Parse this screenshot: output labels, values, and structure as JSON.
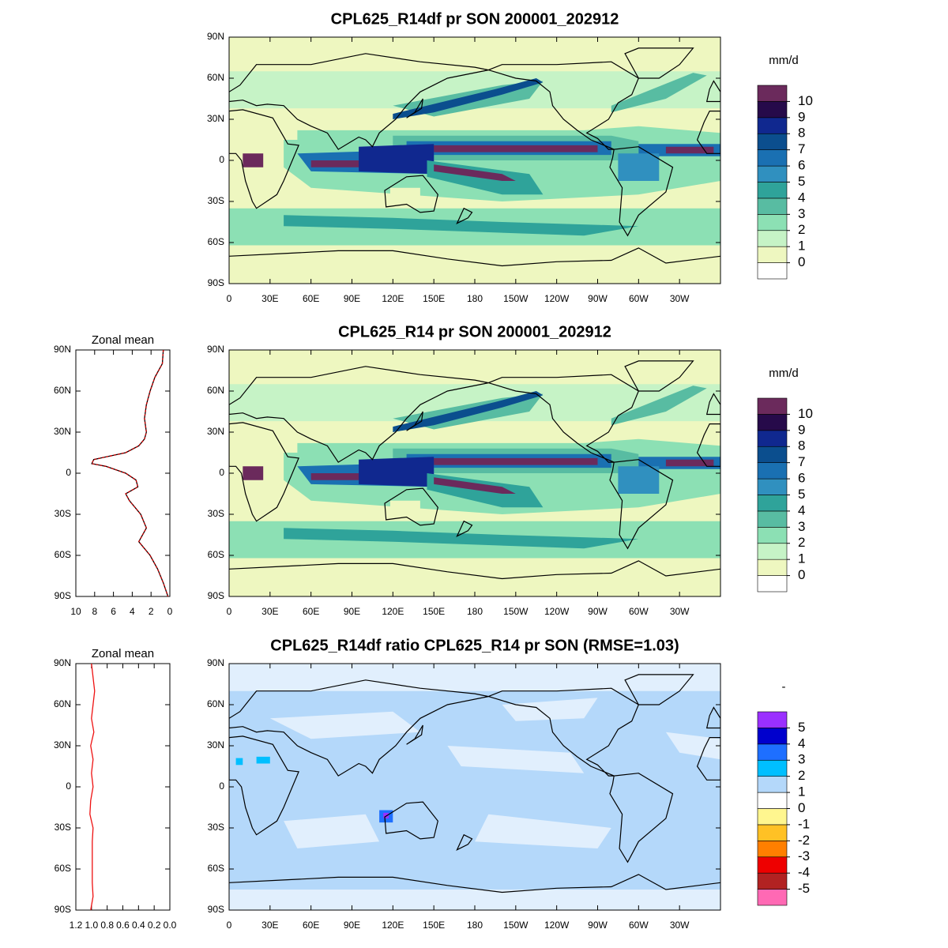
{
  "chart_data": [
    {
      "type": "map",
      "title": "CPL625_R14df pr SON 200001_202912",
      "xlim": [
        0,
        360
      ],
      "ylim": [
        -90,
        90
      ],
      "xticks": [
        0,
        {
          "value": 30,
          "label": "30E"
        },
        {
          "value": 60,
          "label": "60E"
        },
        {
          "value": 90,
          "label": "90E"
        },
        {
          "value": 120,
          "label": "120E"
        },
        {
          "value": 150,
          "label": "150E"
        },
        180,
        {
          "value": 210,
          "label": "150W"
        },
        {
          "value": 240,
          "label": "120W"
        },
        {
          "value": 270,
          "label": "90W"
        },
        {
          "value": 300,
          "label": "60W"
        },
        {
          "value": 330,
          "label": "30W"
        }
      ],
      "yticks": [
        {
          "value": -90,
          "label": "90S"
        },
        {
          "value": -60,
          "label": "60S"
        },
        {
          "value": -30,
          "label": "30S"
        },
        0,
        {
          "value": 30,
          "label": "30N"
        },
        {
          "value": 60,
          "label": "60N"
        },
        {
          "value": 90,
          "label": "90N"
        }
      ],
      "colorbar": {
        "title": "mm/d",
        "levels": [
          0,
          1,
          2,
          3,
          4,
          5,
          6,
          7,
          8,
          9,
          10
        ],
        "colors": [
          "#ffffff",
          "#eef7c0",
          "#c6f3c6",
          "#8ce0b4",
          "#58bca2",
          "#2fa39a",
          "#3090bf",
          "#1a70b2",
          "#0b4e8e",
          "#10288f",
          "#260a4a",
          "#6b2a5c"
        ]
      }
    },
    {
      "type": "line",
      "title": "Zonal mean",
      "xlim": [
        10,
        0
      ],
      "xticks": [
        10,
        8,
        6,
        4,
        2,
        0
      ],
      "ylim": [
        -90,
        90
      ],
      "yticks": [
        {
          "value": -90,
          "label": "90S"
        },
        {
          "value": -60,
          "label": "60S"
        },
        {
          "value": -30,
          "label": "30S"
        },
        0,
        {
          "value": 30,
          "label": "30N"
        },
        {
          "value": 60,
          "label": "60N"
        },
        {
          "value": 90,
          "label": "90N"
        }
      ],
      "y": [
        90,
        80,
        70,
        60,
        50,
        40,
        30,
        25,
        20,
        15,
        10,
        7,
        5,
        0,
        -5,
        -10,
        -15,
        -20,
        -30,
        -40,
        -50,
        -60,
        -70,
        -80,
        -90
      ],
      "series": [
        {
          "color": "#000000",
          "values": [
            0.7,
            0.8,
            1.6,
            2.1,
            2.5,
            2.7,
            2.5,
            2.7,
            3.3,
            4.7,
            8.1,
            8.3,
            6.8,
            4.7,
            3.6,
            3.4,
            4.7,
            4.3,
            3.1,
            2.5,
            3.3,
            2.1,
            1.3,
            0.7,
            0.2
          ]
        },
        {
          "color": "#cc0000",
          "values": [
            0.7,
            0.8,
            1.6,
            2.1,
            2.5,
            2.7,
            2.5,
            2.7,
            3.3,
            4.7,
            8.1,
            8.3,
            6.8,
            4.7,
            3.6,
            3.4,
            4.7,
            4.3,
            3.1,
            2.5,
            3.3,
            2.1,
            1.3,
            0.7,
            0.2
          ]
        }
      ]
    },
    {
      "type": "map",
      "title": "CPL625_R14 pr SON 200001_202912",
      "xlim": [
        0,
        360
      ],
      "ylim": [
        -90,
        90
      ],
      "xticks": [
        0,
        {
          "value": 30,
          "label": "30E"
        },
        {
          "value": 60,
          "label": "60E"
        },
        {
          "value": 90,
          "label": "90E"
        },
        {
          "value": 120,
          "label": "120E"
        },
        {
          "value": 150,
          "label": "150E"
        },
        180,
        {
          "value": 210,
          "label": "150W"
        },
        {
          "value": 240,
          "label": "120W"
        },
        {
          "value": 270,
          "label": "90W"
        },
        {
          "value": 300,
          "label": "60W"
        },
        {
          "value": 330,
          "label": "30W"
        }
      ],
      "yticks": [
        {
          "value": -90,
          "label": "90S"
        },
        {
          "value": -60,
          "label": "60S"
        },
        {
          "value": -30,
          "label": "30S"
        },
        0,
        {
          "value": 30,
          "label": "30N"
        },
        {
          "value": 60,
          "label": "60N"
        },
        {
          "value": 90,
          "label": "90N"
        }
      ],
      "colorbar": {
        "title": "mm/d",
        "levels": [
          0,
          1,
          2,
          3,
          4,
          5,
          6,
          7,
          8,
          9,
          10
        ],
        "colors": [
          "#ffffff",
          "#eef7c0",
          "#c6f3c6",
          "#8ce0b4",
          "#58bca2",
          "#2fa39a",
          "#3090bf",
          "#1a70b2",
          "#0b4e8e",
          "#10288f",
          "#260a4a",
          "#6b2a5c"
        ]
      }
    },
    {
      "type": "line",
      "title": "Zonal mean",
      "xlim": [
        1.2,
        0
      ],
      "xticks": [
        1.2,
        {
          "value": 1,
          "label": "1.0"
        },
        0.8,
        0.6,
        0.4,
        0.2,
        {
          "value": 0,
          "label": "0.0"
        }
      ],
      "ylim": [
        -90,
        90
      ],
      "yticks": [
        {
          "value": -90,
          "label": "90S"
        },
        {
          "value": -60,
          "label": "60S"
        },
        {
          "value": -30,
          "label": "30S"
        },
        0,
        {
          "value": 30,
          "label": "30N"
        },
        {
          "value": 60,
          "label": "60N"
        },
        {
          "value": 90,
          "label": "90N"
        }
      ],
      "y": [
        90,
        80,
        70,
        60,
        50,
        40,
        30,
        20,
        10,
        0,
        -10,
        -20,
        -30,
        -40,
        -50,
        -60,
        -70,
        -80,
        -90
      ],
      "series": [
        {
          "color": "#ee1111",
          "values": [
            1.0,
            0.98,
            0.96,
            0.98,
            1.0,
            0.97,
            1.01,
            0.98,
            1.0,
            0.98,
            1.01,
            1.02,
            0.98,
            0.99,
            0.99,
            0.99,
            0.99,
            0.98,
            1.01
          ]
        }
      ]
    },
    {
      "type": "map",
      "title": "CPL625_R14df ratio CPL625_R14 pr SON (RMSE=1.03)",
      "xlim": [
        0,
        360
      ],
      "ylim": [
        -90,
        90
      ],
      "xticks": [
        0,
        {
          "value": 30,
          "label": "30E"
        },
        {
          "value": 60,
          "label": "60E"
        },
        {
          "value": 90,
          "label": "90E"
        },
        {
          "value": 120,
          "label": "120E"
        },
        {
          "value": 150,
          "label": "150E"
        },
        180,
        {
          "value": 210,
          "label": "150W"
        },
        {
          "value": 240,
          "label": "120W"
        },
        {
          "value": 270,
          "label": "90W"
        },
        {
          "value": 300,
          "label": "60W"
        },
        {
          "value": 330,
          "label": "30W"
        }
      ],
      "yticks": [
        {
          "value": -90,
          "label": "90S"
        },
        {
          "value": -60,
          "label": "60S"
        },
        {
          "value": -30,
          "label": "30S"
        },
        0,
        {
          "value": 30,
          "label": "30N"
        },
        {
          "value": 60,
          "label": "60N"
        },
        {
          "value": 90,
          "label": "90N"
        }
      ],
      "colorbar": {
        "title": "-",
        "levels": [
          -5,
          -4,
          -3,
          -2,
          -1,
          0,
          1,
          2,
          3,
          4,
          5
        ],
        "colors": [
          "#ff69b4",
          "#b22222",
          "#ee0000",
          "#ff7f00",
          "#ffc125",
          "#fff68f",
          "#ffffff",
          "#b4d8fa",
          "#00bfff",
          "#1e6fff",
          "#0000cd",
          "#9b30ff"
        ]
      }
    }
  ]
}
